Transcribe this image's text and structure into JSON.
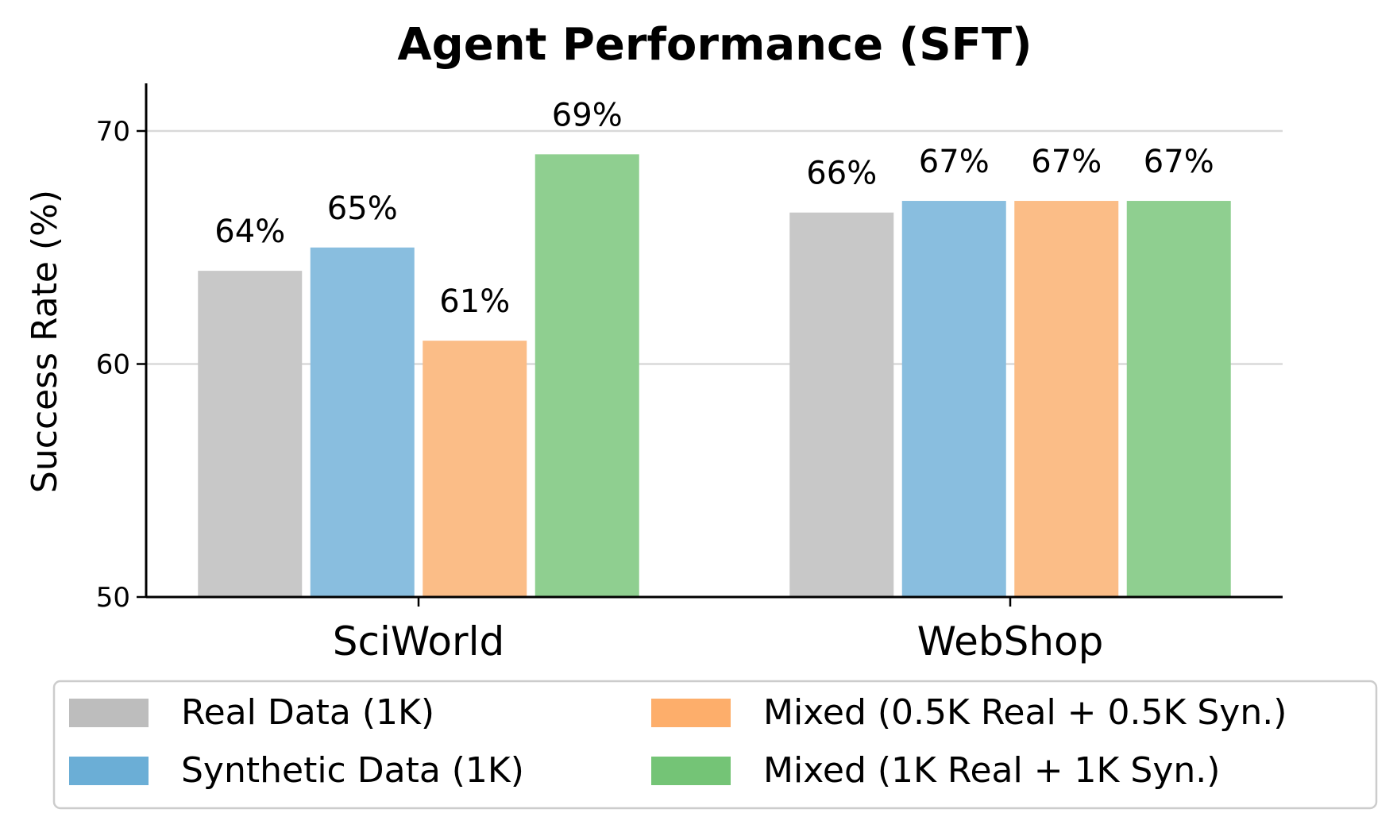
{
  "chart_data": {
    "type": "bar",
    "title": "Agent Performance (SFT)",
    "xlabel": "",
    "ylabel": "Success Rate (%)",
    "ylim": [
      50,
      72
    ],
    "yticks": [
      50,
      60,
      70
    ],
    "grid": "horizontal",
    "legend_position": "bottom",
    "categories": [
      "SciWorld",
      "WebShop"
    ],
    "series": [
      {
        "name": "Real Data (1K)",
        "color": "#c8c8c8",
        "legend_color": "#bdbdbd",
        "values": [
          64.0,
          66.5
        ],
        "labels": [
          "64%",
          "66%"
        ]
      },
      {
        "name": "Synthetic Data (1K)",
        "color": "#89bedf",
        "legend_color": "#6baed6",
        "values": [
          65.0,
          67.0
        ],
        "labels": [
          "65%",
          "67%"
        ]
      },
      {
        "name": "Mixed (0.5K Real + 0.5K Syn.)",
        "color": "#fbbd87",
        "legend_color": "#fdae6b",
        "values": [
          61.0,
          67.0
        ],
        "labels": [
          "61%",
          "67%"
        ]
      },
      {
        "name": "Mixed (1K Real + 1K Syn.)",
        "color": "#8fcf90",
        "legend_color": "#74c476",
        "values": [
          69.0,
          67.0
        ],
        "labels": [
          "69%",
          "67%"
        ]
      }
    ]
  }
}
